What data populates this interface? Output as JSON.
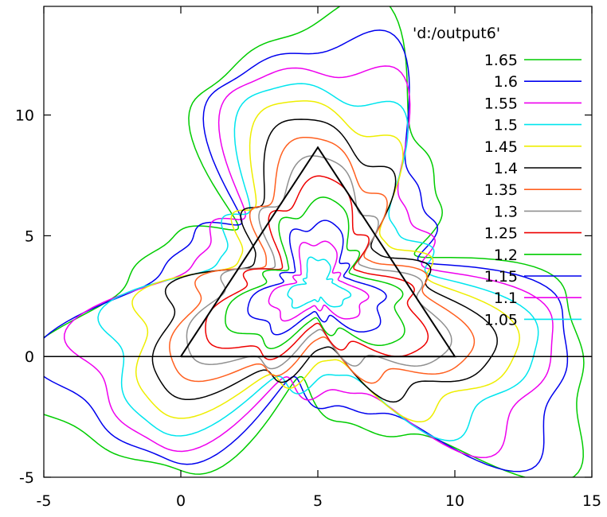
{
  "chart_data": {
    "type": "contour",
    "title": "",
    "xlabel": "",
    "ylabel": "",
    "xlim": [
      -5,
      15
    ],
    "ylim": [
      -5,
      14.5
    ],
    "x_ticks": [
      -5,
      0,
      5,
      10,
      15
    ],
    "y_ticks": [
      -5,
      0,
      5,
      10
    ],
    "x_tick_labels": [
      "-5",
      "0",
      "5",
      "10",
      "15"
    ],
    "y_tick_labels": [
      "-5",
      "0",
      "5",
      "10"
    ],
    "grid": false,
    "legend_position": "top-right",
    "legend_title": "'d:/output6'",
    "levels": [
      {
        "label": "1.65",
        "color": "#00cc00",
        "radius": 8.0
      },
      {
        "label": "1.6",
        "color": "#0000ee",
        "radius": 7.35
      },
      {
        "label": "1.55",
        "color": "#ee00ee",
        "radius": 6.7
      },
      {
        "label": "1.5",
        "color": "#00e5ee",
        "radius": 6.05
      },
      {
        "label": "1.45",
        "color": "#eeee00",
        "radius": 5.4
      },
      {
        "label": "1.4",
        "color": "#000000",
        "radius": 4.75
      },
      {
        "label": "1.35",
        "color": "#ff6020",
        "radius": 4.15
      },
      {
        "label": "1.3",
        "color": "#909090",
        "radius": 3.6
      },
      {
        "label": "1.25",
        "color": "#ee0000",
        "radius": 3.05
      },
      {
        "label": "1.2",
        "color": "#00cc00",
        "radius": 2.5
      },
      {
        "label": "1.15",
        "color": "#0000ee",
        "radius": 1.9
      },
      {
        "label": "1.1",
        "color": "#ee00ee",
        "radius": 1.35
      },
      {
        "label": "1.05",
        "color": "#00e5ee",
        "radius": 0.85
      }
    ],
    "triangle": [
      [
        0,
        0
      ],
      [
        10,
        0
      ],
      [
        5,
        8.66
      ]
    ],
    "center": [
      5,
      2.89
    ],
    "zero_line_y": 0
  }
}
